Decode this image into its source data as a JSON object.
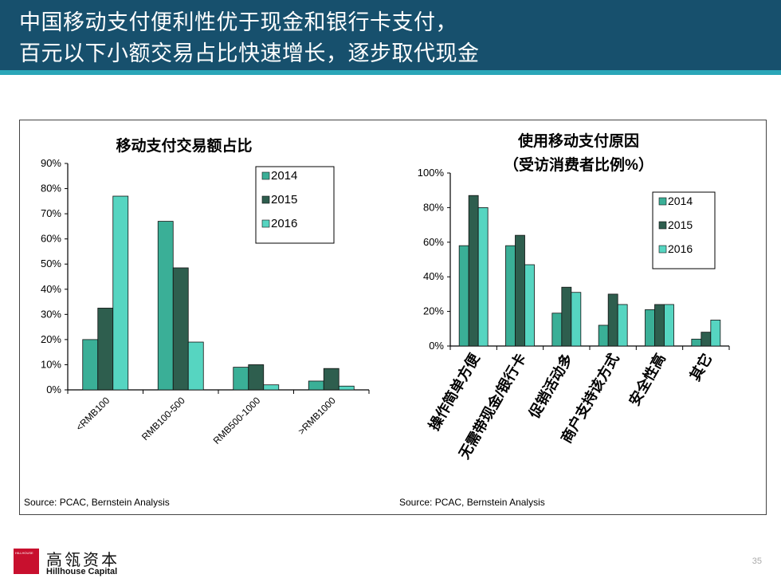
{
  "header": {
    "title_line1": "中国移动支付便利性优于现金和银行卡支付，",
    "title_line2": "百元以下小额交易占比快速增长，逐步取代现金"
  },
  "colors": {
    "header_bg": "#17506d",
    "stripe": "#2aa6b8",
    "series_2014": "#3aaf97",
    "series_2015": "#2e5e4e",
    "series_2016": "#56d5c1"
  },
  "chart_data": [
    {
      "type": "bar",
      "title": "移动支付交易额占比",
      "categories": [
        "<RMB100",
        "RMB100-500",
        "RMB500-1000",
        ">RMB1000"
      ],
      "series": [
        {
          "name": "2014",
          "values": [
            20,
            67,
            9,
            3.5
          ]
        },
        {
          "name": "2015",
          "values": [
            32.5,
            48.5,
            10,
            8.5
          ]
        },
        {
          "name": "2016",
          "values": [
            77,
            19,
            2,
            1.5
          ]
        }
      ],
      "ylim": [
        0,
        90
      ],
      "yticks": [
        "0%",
        "10%",
        "20%",
        "30%",
        "40%",
        "50%",
        "60%",
        "70%",
        "80%",
        "90%"
      ],
      "legend": [
        "2014",
        "2015",
        "2016"
      ],
      "source": "Source: PCAC, Bernstein Analysis"
    },
    {
      "type": "bar",
      "title": "使用移动支付原因",
      "subtitle": "（受访消费者比例%）",
      "categories": [
        "操作简单方便",
        "无需带现金/银行卡",
        "促销活动多",
        "商户支持该方式",
        "安全性高",
        "其它"
      ],
      "series": [
        {
          "name": "2014",
          "values": [
            58,
            58,
            19,
            12,
            21,
            4
          ]
        },
        {
          "name": "2015",
          "values": [
            87,
            64,
            34,
            30,
            24,
            8
          ]
        },
        {
          "name": "2016",
          "values": [
            80,
            47,
            31,
            24,
            24,
            15
          ]
        }
      ],
      "ylim": [
        0,
        100
      ],
      "yticks": [
        "0%",
        "20%",
        "40%",
        "60%",
        "80%",
        "100%"
      ],
      "legend": [
        "2014",
        "2015",
        "2016"
      ],
      "source": "Source: PCAC, Bernstein Analysis"
    }
  ],
  "footer": {
    "logo_text": "HILLHOUSE",
    "brand_cn": "高瓴资本",
    "brand_en": "Hillhouse Capital",
    "page_number": "35"
  }
}
